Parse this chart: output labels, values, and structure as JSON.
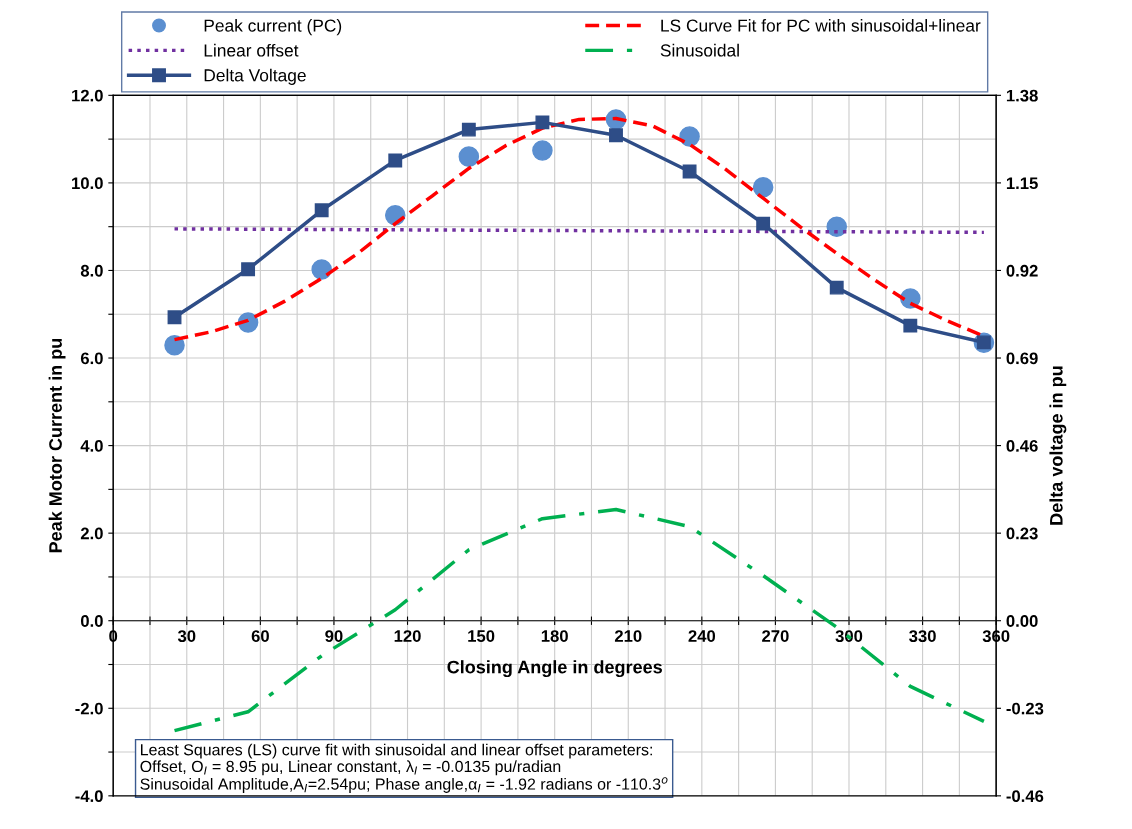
{
  "chart_data": {
    "type": "line",
    "xlabel": "Closing Angle in degrees",
    "ylabel": "Peak Motor Current in pu",
    "y2label": "Delta voltage in pu",
    "series": [
      {
        "name": "Peak current (PC)",
        "type": "scatter",
        "marker": "circle",
        "color": "#5b8fd0",
        "x": [
          25,
          55,
          85,
          115,
          145,
          175,
          205,
          235,
          265,
          295,
          325,
          355
        ],
        "values": [
          6.29,
          6.81,
          8.02,
          9.26,
          10.6,
          10.74,
          11.45,
          11.06,
          9.9,
          9.0,
          7.36,
          6.35
        ]
      },
      {
        "name": "Linear offset",
        "line_style": "dotted",
        "color": "#7030a0",
        "x": [
          25,
          190,
          355
        ],
        "values": [
          8.95,
          8.91,
          8.87
        ]
      },
      {
        "name": "Delta Voltage",
        "marker": "square",
        "line_style": "solid",
        "axis": "y2",
        "color": "#2e4d87",
        "x": [
          25,
          55,
          85,
          115,
          145,
          175,
          205,
          235,
          265,
          295,
          325,
          355
        ],
        "values": [
          0.797,
          0.923,
          1.078,
          1.209,
          1.29,
          1.309,
          1.275,
          1.18,
          1.043,
          0.875,
          0.775,
          0.731
        ]
      },
      {
        "name": "LS Curve Fit for PC with sinusoidal+linear",
        "line_style": "dashed",
        "color": "#ff0000",
        "x": [
          25,
          40,
          55,
          70,
          85,
          100,
          115,
          130,
          145,
          160,
          175,
          190,
          205,
          220,
          235,
          250,
          265,
          280,
          295,
          310,
          325,
          340,
          355
        ],
        "values": [
          6.42,
          6.6,
          6.86,
          7.3,
          7.82,
          8.4,
          9.07,
          9.7,
          10.33,
          10.85,
          11.25,
          11.45,
          11.47,
          11.3,
          10.88,
          10.3,
          9.65,
          9.0,
          8.39,
          7.8,
          7.25,
          6.85,
          6.5
        ]
      },
      {
        "name": "Sinusoidal",
        "line_style": "dashdot",
        "color": "#00b050",
        "x": [
          25,
          55,
          85,
          115,
          145,
          175,
          205,
          235,
          265,
          295,
          325,
          355
        ],
        "values": [
          -2.51,
          -2.08,
          -0.8,
          0.25,
          1.62,
          2.33,
          2.54,
          2.15,
          1.03,
          -0.15,
          -1.5,
          -2.3
        ]
      }
    ],
    "xlim": [
      0,
      360
    ],
    "xticks": [
      0,
      {
        "value": 15,
        "label": null
      },
      30,
      {
        "value": 45,
        "label": null
      },
      60,
      {
        "value": 75,
        "label": null
      },
      90,
      {
        "value": 105,
        "label": null
      },
      120,
      {
        "value": 135,
        "label": null
      },
      150,
      {
        "value": 165,
        "label": null
      },
      180,
      {
        "value": 195,
        "label": null
      },
      210,
      {
        "value": 225,
        "label": null
      },
      240,
      {
        "value": 255,
        "label": null
      },
      270,
      {
        "value": 285,
        "label": null
      },
      300,
      {
        "value": 315,
        "label": null
      },
      330,
      {
        "value": 345,
        "label": null
      },
      360
    ],
    "ylim": [
      -4,
      12
    ],
    "yticks": [
      {
        "value": -4,
        "label": "-4.0"
      },
      {
        "value": -3,
        "label": null
      },
      {
        "value": -2,
        "label": "-2.0"
      },
      {
        "value": -1,
        "label": null
      },
      {
        "value": 0,
        "label": "0.0"
      },
      {
        "value": 1,
        "label": null
      },
      {
        "value": 2,
        "label": "2.0"
      },
      {
        "value": 3,
        "label": null
      },
      {
        "value": 4,
        "label": "4.0"
      },
      {
        "value": 5,
        "label": null
      },
      {
        "value": 6,
        "label": "6.0"
      },
      {
        "value": 7,
        "label": null
      },
      {
        "value": 8,
        "label": "8.0"
      },
      {
        "value": 9,
        "label": null
      },
      {
        "value": 10,
        "label": "10.0"
      },
      {
        "value": 11,
        "label": null
      },
      {
        "value": 12,
        "label": "12.0"
      }
    ],
    "y2lim": [
      -0.46,
      1.38
    ],
    "y2ticks": [
      -0.46,
      -0.23,
      {
        "value": 0,
        "label": "0.00"
      },
      0.23,
      0.46,
      0.69,
      0.92,
      1.15,
      1.38
    ],
    "grid": true,
    "legend": "top",
    "annotations": [
      "Least Squares (LS) curve fit with sinusoidal and linear offset parameters:\nOffset, O$_{I}$ = 8.95 pu, Linear constant, λ$_{I}$ = -0.0135 pu/radian\nSinusoidal Amplitude,A$_{I}$=2.54pu; Phase angle,α$_{I}$ = -1.92 radians or -110.3$^{o}$"
    ]
  }
}
